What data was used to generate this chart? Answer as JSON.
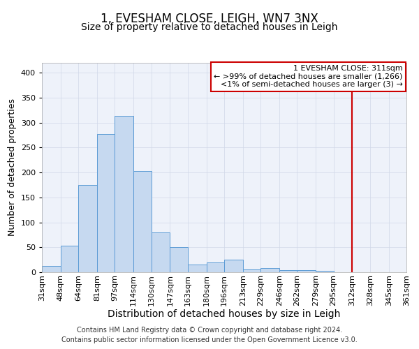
{
  "title": "1, EVESHAM CLOSE, LEIGH, WN7 3NX",
  "subtitle": "Size of property relative to detached houses in Leigh",
  "xlabel": "Distribution of detached houses by size in Leigh",
  "ylabel": "Number of detached properties",
  "bar_color": "#c6d9f0",
  "bar_edge_color": "#5b9bd5",
  "grid_color": "#d0d8e8",
  "background_color": "#ffffff",
  "plot_bg_color": "#eef2fa",
  "vline_x": 312,
  "vline_color": "#cc0000",
  "bin_edges": [
    31,
    48,
    64,
    81,
    97,
    114,
    130,
    147,
    163,
    180,
    196,
    213,
    229,
    246,
    262,
    279,
    295,
    312,
    328,
    345,
    361
  ],
  "bar_heights": [
    13,
    53,
    175,
    277,
    313,
    203,
    80,
    51,
    15,
    20,
    25,
    5,
    9,
    4,
    4,
    3,
    0,
    0,
    0,
    0
  ],
  "ylim": [
    0,
    420
  ],
  "yticks": [
    0,
    50,
    100,
    150,
    200,
    250,
    300,
    350,
    400
  ],
  "annotation_title": "1 EVESHAM CLOSE: 311sqm",
  "annotation_line1": "← >99% of detached houses are smaller (1,266)",
  "annotation_line2": "<1% of semi-detached houses are larger (3) →",
  "footer1": "Contains HM Land Registry data © Crown copyright and database right 2024.",
  "footer2": "Contains public sector information licensed under the Open Government Licence v3.0.",
  "annotation_box_facecolor": "#ffffff",
  "annotation_box_edgecolor": "#cc0000",
  "title_fontsize": 12,
  "subtitle_fontsize": 10,
  "xlabel_fontsize": 10,
  "ylabel_fontsize": 9,
  "tick_fontsize": 8,
  "annotation_fontsize": 8,
  "footer_fontsize": 7
}
